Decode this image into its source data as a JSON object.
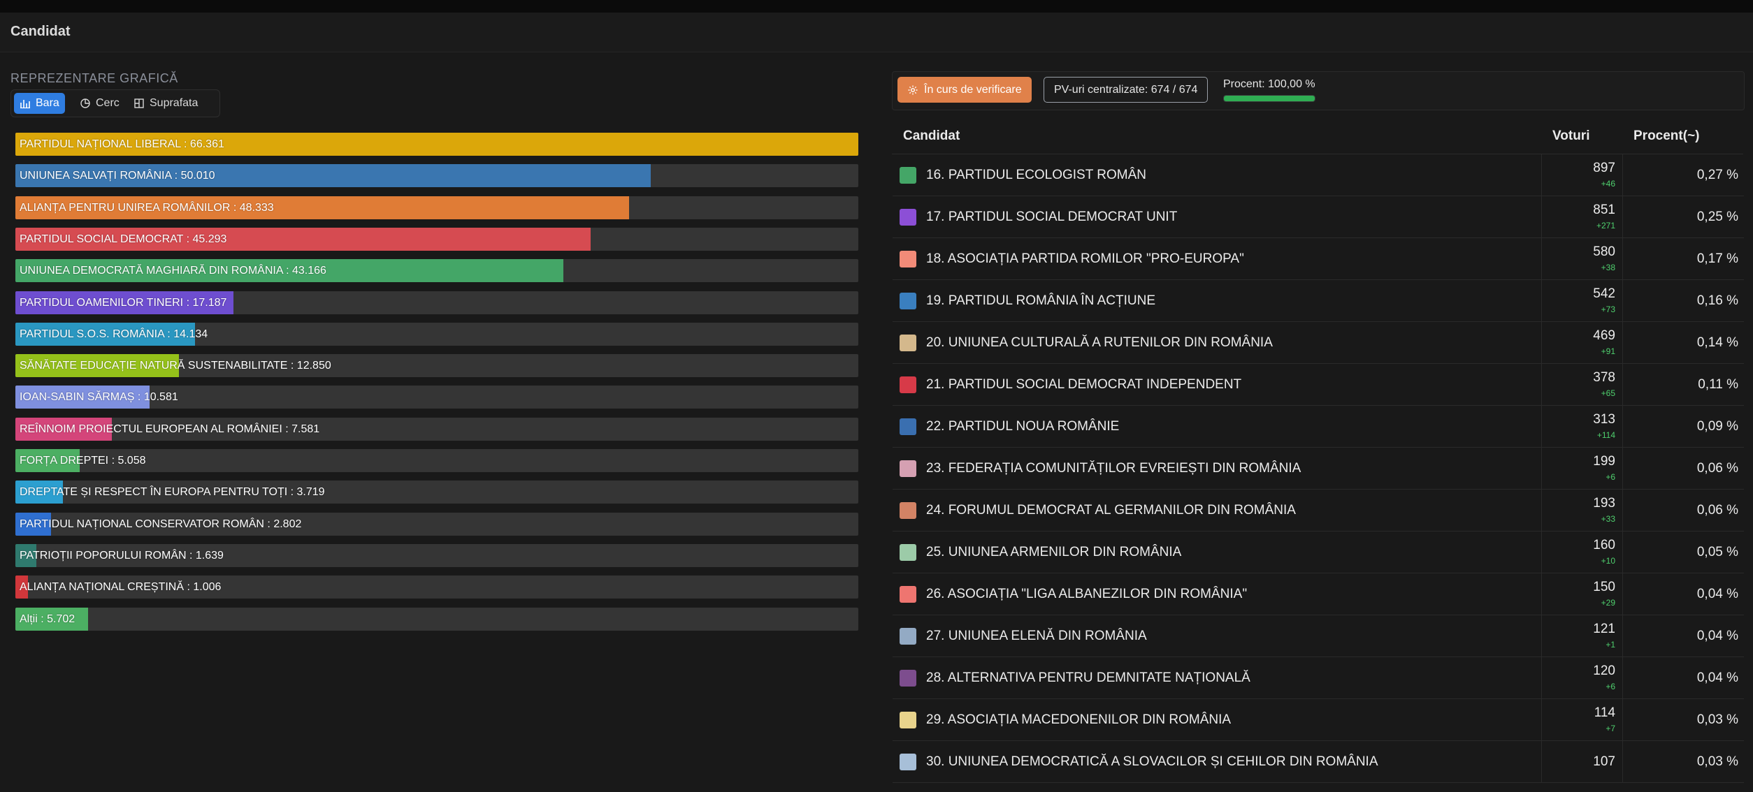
{
  "header": {
    "title": "Candidat"
  },
  "left": {
    "section_label": "REPREZENTARE GRAFICĂ",
    "tabs": [
      {
        "label": "Bara",
        "icon": "bar-chart-icon",
        "active": true
      },
      {
        "label": "Cerc",
        "icon": "pie-chart-icon",
        "active": false
      },
      {
        "label": "Suprafata",
        "icon": "treemap-icon",
        "active": false
      }
    ]
  },
  "chart_data": {
    "type": "bar",
    "orientation": "horizontal",
    "xlim": [
      0,
      66361
    ],
    "categories": [
      "PARTIDUL NAȚIONAL LIBERAL",
      "UNIUNEA SALVAȚI ROMÂNIA",
      "ALIANȚA PENTRU UNIREA ROMÂNILOR",
      "PARTIDUL SOCIAL DEMOCRAT",
      "UNIUNEA DEMOCRATĂ MAGHIARĂ DIN ROMÂNIA",
      "PARTIDUL OAMENILOR TINERI",
      "PARTIDUL S.O.S. ROMÂNIA",
      "SĂNĂTATE EDUCAȚIE NATURĂ SUSTENABILITATE",
      "IOAN-SABIN SĂRMAȘ",
      "REÎNNOIM PROIECTUL EUROPEAN AL ROMÂNIEI",
      "FORȚA DREPTEI",
      "DREPTATE ȘI RESPECT ÎN EUROPA PENTRU TOȚI",
      "PARTIDUL NAȚIONAL CONSERVATOR ROMÂN",
      "PATRIOȚII POPORULUI ROMÂN",
      "ALIANȚA NAȚIONAL CREȘTINĂ",
      "Alții"
    ],
    "values": [
      66361,
      50010,
      48333,
      45293,
      43166,
      17187,
      14134,
      12850,
      10581,
      7581,
      5058,
      3719,
      2802,
      1639,
      1006,
      5702
    ],
    "labels": [
      "PARTIDUL NAȚIONAL LIBERAL : 66.361",
      "UNIUNEA SALVAȚI ROMÂNIA : 50.010",
      "ALIANȚA PENTRU UNIREA ROMÂNILOR : 48.333",
      "PARTIDUL SOCIAL DEMOCRAT : 45.293",
      "UNIUNEA DEMOCRATĂ MAGHIARĂ DIN ROMÂNIA : 43.166",
      "PARTIDUL OAMENILOR TINERI : 17.187",
      "PARTIDUL S.O.S. ROMÂNIA : 14.134",
      "SĂNĂTATE EDUCAȚIE NATURĂ SUSTENABILITATE : 12.850",
      "IOAN-SABIN SĂRMAȘ : 10.581",
      "REÎNNOIM PROIECTUL EUROPEAN AL ROMÂNIEI : 7.581",
      "FORȚA DREPTEI : 5.058",
      "DREPTATE ȘI RESPECT ÎN EUROPA PENTRU TOȚI : 3.719",
      "PARTIDUL NAȚIONAL CONSERVATOR ROMÂN : 2.802",
      "PATRIOȚII POPORULUI ROMÂN : 1.639",
      "ALIANȚA NAȚIONAL CREȘTINĂ : 1.006",
      "Alții : 5.702"
    ],
    "colors": [
      "#dba70a",
      "#3a76b0",
      "#e07c36",
      "#d64b51",
      "#44a667",
      "#6e4ed0",
      "#2a97c1",
      "#95c11a",
      "#7f90df",
      "#d4457a",
      "#4caf63",
      "#2c9fd0",
      "#2f6fd0",
      "#2f7a6e",
      "#d1373b",
      "#4caf63"
    ]
  },
  "right": {
    "status": {
      "verification_label": "În curs de verificare",
      "verification_icon": "gear-icon",
      "verification_color": "#e0814a",
      "pv_label": "PV-uri centralizate: 674 / 674",
      "procent_label": "Procent: 100,00 %",
      "procent_value": 1.0,
      "procent_color": "#2fae53"
    },
    "table": {
      "headers": {
        "candidate": "Candidat",
        "votes": "Voturi",
        "percent": "Procent(~)"
      },
      "rows": [
        {
          "color": "#44a667",
          "name": "16. PARTIDUL ECOLOGIST ROMÂN",
          "votes": "897",
          "delta": "+46",
          "percent": "0,27 %"
        },
        {
          "color": "#8c4fd6",
          "name": "17. PARTIDUL SOCIAL DEMOCRAT UNIT",
          "votes": "851",
          "delta": "+271",
          "percent": "0,25 %"
        },
        {
          "color": "#f28b78",
          "name": "18. ASOCIAȚIA PARTIDA ROMILOR \"PRO-EUROPA\"",
          "votes": "580",
          "delta": "+38",
          "percent": "0,17 %"
        },
        {
          "color": "#3a7fbf",
          "name": "19. PARTIDUL ROMÂNIA ÎN ACȚIUNE",
          "votes": "542",
          "delta": "+73",
          "percent": "0,16 %"
        },
        {
          "color": "#d4b88c",
          "name": "20. UNIUNEA CULTURALĂ A RUTENILOR DIN ROMÂNIA",
          "votes": "469",
          "delta": "+91",
          "percent": "0,14 %"
        },
        {
          "color": "#d73a48",
          "name": "21. PARTIDUL SOCIAL DEMOCRAT INDEPENDENT",
          "votes": "378",
          "delta": "+65",
          "percent": "0,11 %"
        },
        {
          "color": "#3a6fb0",
          "name": "22. PARTIDUL NOUA ROMÂNIE",
          "votes": "313",
          "delta": "+114",
          "percent": "0,09 %"
        },
        {
          "color": "#d5a0b2",
          "name": "23. FEDERAȚIA COMUNITĂȚILOR EVREIEȘTI DIN ROMÂNIA",
          "votes": "199",
          "delta": "+6",
          "percent": "0,06 %"
        },
        {
          "color": "#d38365",
          "name": "24. FORUMUL DEMOCRAT AL GERMANILOR DIN ROMÂNIA",
          "votes": "193",
          "delta": "+33",
          "percent": "0,06 %"
        },
        {
          "color": "#9ccba8",
          "name": "25. UNIUNEA ARMENILOR DIN ROMÂNIA",
          "votes": "160",
          "delta": "+10",
          "percent": "0,05 %"
        },
        {
          "color": "#ee7570",
          "name": "26. ASOCIAȚIA \"LIGA ALBANEZILOR DIN ROMÂNIA\"",
          "votes": "150",
          "delta": "+29",
          "percent": "0,04 %"
        },
        {
          "color": "#93aac4",
          "name": "27. UNIUNEA ELENĂ DIN ROMÂNIA",
          "votes": "121",
          "delta": "+1",
          "percent": "0,04 %"
        },
        {
          "color": "#7d4d8e",
          "name": "28. ALTERNATIVA PENTRU DEMNITATE NAȚIONALĂ",
          "votes": "120",
          "delta": "+6",
          "percent": "0,04 %"
        },
        {
          "color": "#e8d38c",
          "name": "29. ASOCIAȚIA MACEDONENILOR DIN ROMÂNIA",
          "votes": "114",
          "delta": "+7",
          "percent": "0,03 %"
        },
        {
          "color": "#a7bfd8",
          "name": "30. UNIUNEA DEMOCRATICĂ A SLOVACILOR ȘI CEHILOR DIN ROMÂNIA",
          "votes": "107",
          "delta": "",
          "percent": "0,03 %"
        }
      ]
    }
  }
}
